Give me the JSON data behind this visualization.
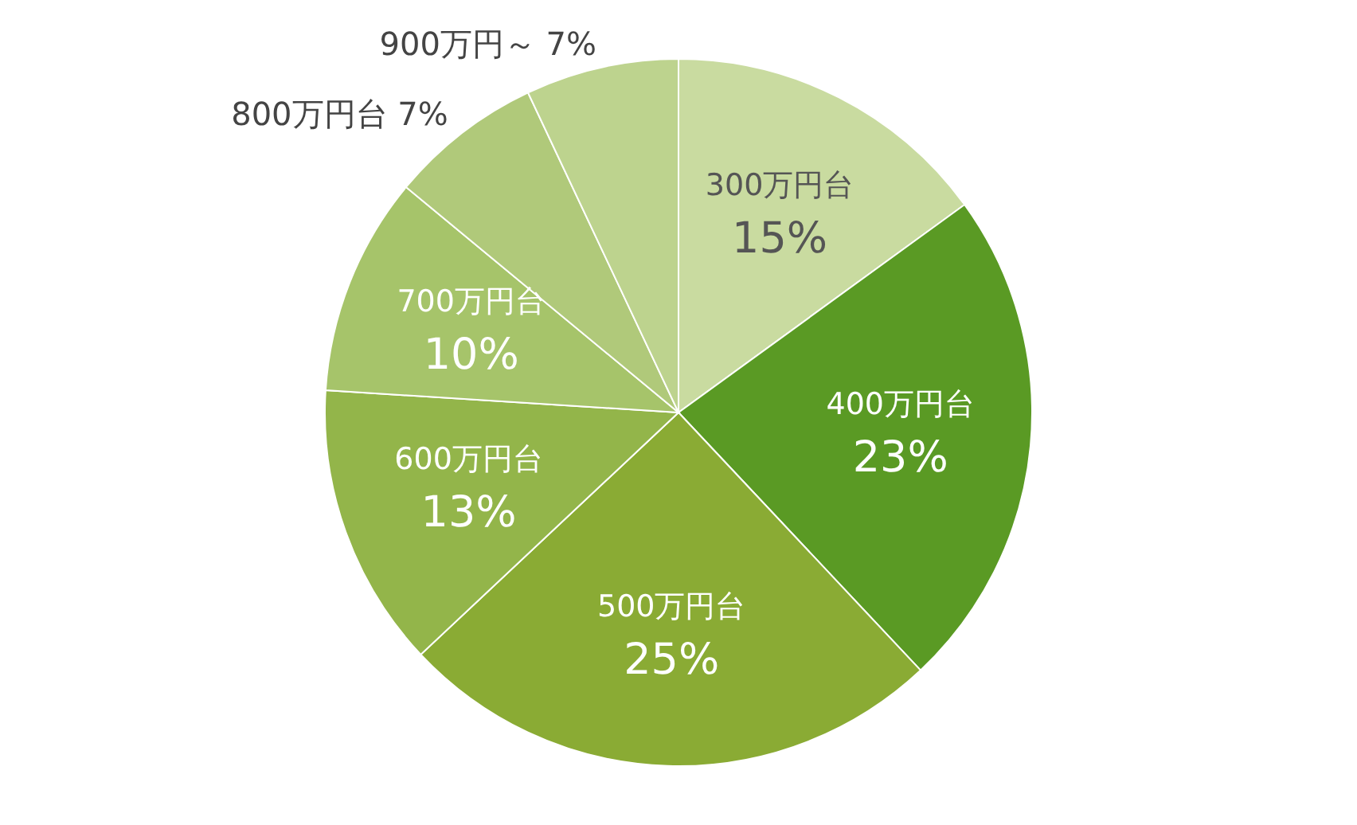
{
  "chart_data": {
    "type": "pie",
    "categories": [
      "300万円台",
      "400万円台",
      "500万円台",
      "600万円台",
      "700万円台",
      "800万円台",
      "900万円～"
    ],
    "values": [
      15,
      23,
      25,
      13,
      10,
      7,
      7
    ],
    "colors": [
      "#c9dba0",
      "#5a9a24",
      "#8aab34",
      "#93b54a",
      "#a6c46a",
      "#b0c97a",
      "#bdd38e"
    ],
    "value_labels": [
      "15%",
      "23%",
      "25%",
      "13%",
      "10%",
      "7%",
      "7%"
    ]
  }
}
